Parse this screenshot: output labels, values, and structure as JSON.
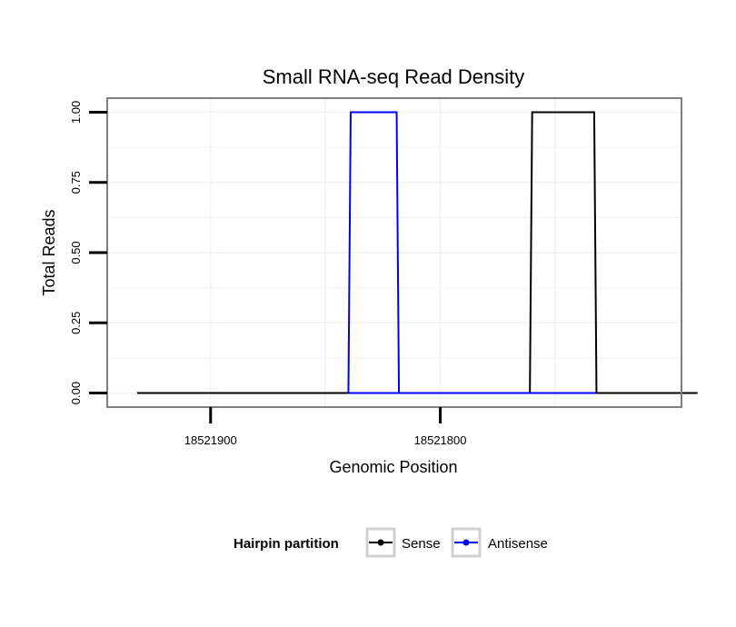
{
  "chart_data": {
    "type": "line",
    "title": "Small RNA-seq Read Density",
    "xlabel": "Genomic Position",
    "ylabel": "Total Reads",
    "x_reversed": true,
    "xlim": [
      18521945,
      18521695
    ],
    "ylim": [
      -0.05,
      1.05
    ],
    "xticks": [
      18521900,
      18521800
    ],
    "xtick_labels": [
      "18521900",
      "18521800"
    ],
    "yticks": [
      0,
      0.25,
      0.5,
      0.75,
      1
    ],
    "ytick_labels": [
      "0.00",
      "0.25",
      "0.50",
      "0.75",
      "1.00"
    ],
    "grid": true,
    "legend": {
      "title": "Hairpin partition",
      "position": "bottom"
    },
    "series": [
      {
        "name": "Sense",
        "color": "#000000",
        "x": [
          18521932,
          18521688,
          18521761,
          18521760,
          18521733,
          18521732,
          18521760
        ],
        "y": [
          0,
          0,
          0,
          1,
          1,
          0,
          0
        ]
      },
      {
        "name": "Antisense",
        "color": "#0000ff",
        "x": [
          18521840,
          18521839,
          18521819,
          18521818,
          18521840,
          18521761,
          18521732
        ],
        "y": [
          0,
          1,
          1,
          0,
          0,
          0,
          0
        ]
      }
    ]
  }
}
